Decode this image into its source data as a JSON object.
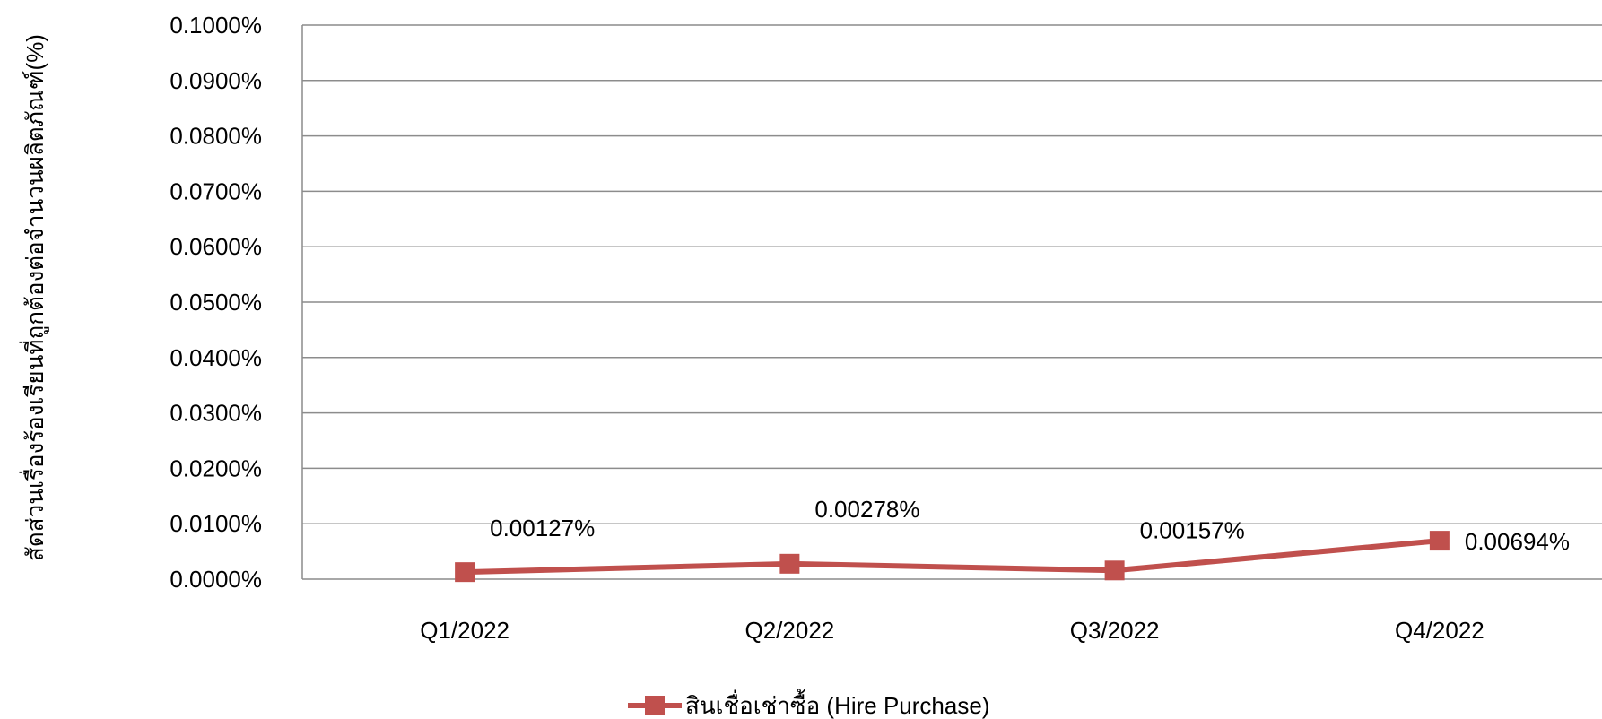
{
  "chart_data": {
    "type": "line",
    "title": "",
    "xlabel": "",
    "ylabel": "สัดส่วนเรื่องร้องเรียนที่ถูกต้องต่อจำนวนผลิตภัณฑ์(%)",
    "categories": [
      "Q1/2022",
      "Q2/2022",
      "Q3/2022",
      "Q4/2022"
    ],
    "y_ticks": [
      "0.0000%",
      "0.0100%",
      "0.0200%",
      "0.0300%",
      "0.0400%",
      "0.0500%",
      "0.0600%",
      "0.0700%",
      "0.0800%",
      "0.0900%",
      "0.1000%"
    ],
    "ylim": [
      0,
      0.1
    ],
    "grid": true,
    "legend_position": "bottom",
    "series": [
      {
        "name": "สินเชื่อเช่าซื้อ (Hire Purchase)",
        "values": [
          0.00127,
          0.00278,
          0.00157,
          0.00694
        ],
        "data_labels": [
          "0.00127%",
          "0.00278%",
          "0.00157%",
          "0.00694%"
        ],
        "color": "#C0504D",
        "marker": "square"
      }
    ]
  }
}
